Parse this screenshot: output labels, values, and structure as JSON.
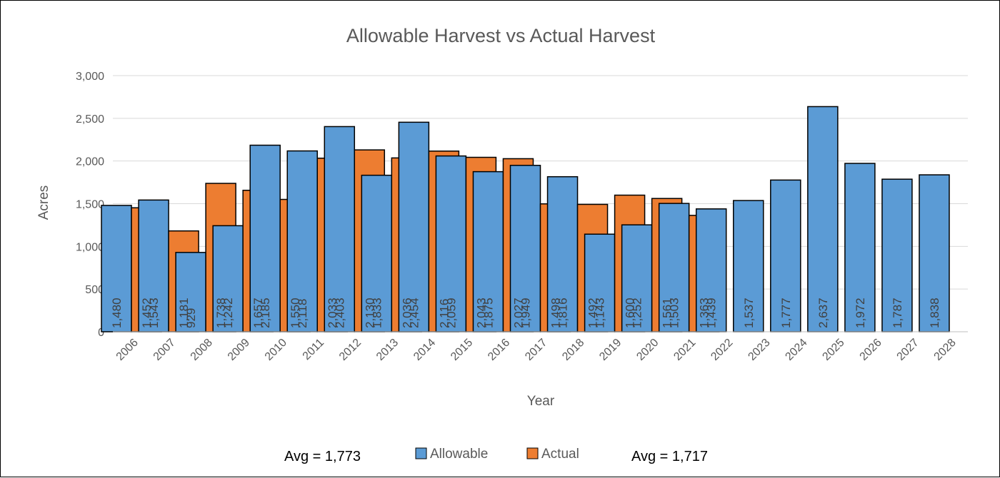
{
  "chart_data": {
    "type": "bar",
    "title": "Allowable Harvest vs Actual Harvest",
    "xlabel": "Year",
    "ylabel": "Acres",
    "ylim": [
      0,
      3000
    ],
    "yticks": [
      "0",
      "500",
      "1,000",
      "1,500",
      "2,000",
      "2,500",
      "3,000"
    ],
    "grid": true,
    "legend_position": "bottom",
    "categories": [
      "2006",
      "2007",
      "2008",
      "2009",
      "2010",
      "2011",
      "2012",
      "2013",
      "2014",
      "2015",
      "2016",
      "2017",
      "2018",
      "2019",
      "2020",
      "2021",
      "2022",
      "2023",
      "2024",
      "2025",
      "2026",
      "2027",
      "2028"
    ],
    "series": [
      {
        "name": "Allowable",
        "color": "#5B9BD5",
        "values": [
          1480,
          1543,
          929,
          1242,
          2185,
          2118,
          2403,
          1833,
          2454,
          2059,
          1875,
          1949,
          1816,
          1143,
          1252,
          1503,
          1439,
          1537,
          1777,
          2637,
          1972,
          1787,
          1838
        ],
        "labels": [
          "1,480",
          "1,543",
          "929",
          "1,242",
          "2,185",
          "2,118",
          "2,403",
          "1,833",
          "2,454",
          "2,059",
          "1,875",
          "1,949",
          "1,816",
          "1,143",
          "1,252",
          "1,503",
          "1,439",
          "1,537",
          "1,777",
          "2,637",
          "1,972",
          "1,787",
          "1,838"
        ]
      },
      {
        "name": "Actual",
        "color": "#ED7D31",
        "values": [
          1452,
          1181,
          1738,
          1657,
          1550,
          2033,
          2130,
          2036,
          2116,
          2043,
          2027,
          1498,
          1492,
          1600,
          1561,
          1363,
          null,
          null,
          null,
          null,
          null,
          null,
          null
        ],
        "labels": [
          "1,452",
          "1,181",
          "1,738",
          "1,657",
          "1,550",
          "2,033",
          "2,130",
          "2,036",
          "2,116",
          "2,043",
          "2,027",
          "1,498",
          "1,492",
          "1,600",
          "1,561",
          "1,363",
          null,
          null,
          null,
          null,
          null,
          null,
          null
        ]
      }
    ],
    "annotations": {
      "allowable_avg": "Avg = 1,773",
      "actual_avg": "Avg = 1,717"
    },
    "colors": {
      "grid": "#D9D9D9",
      "axis": "#BFBFBF",
      "text": "#595959",
      "bar_stroke": "#000000"
    }
  }
}
